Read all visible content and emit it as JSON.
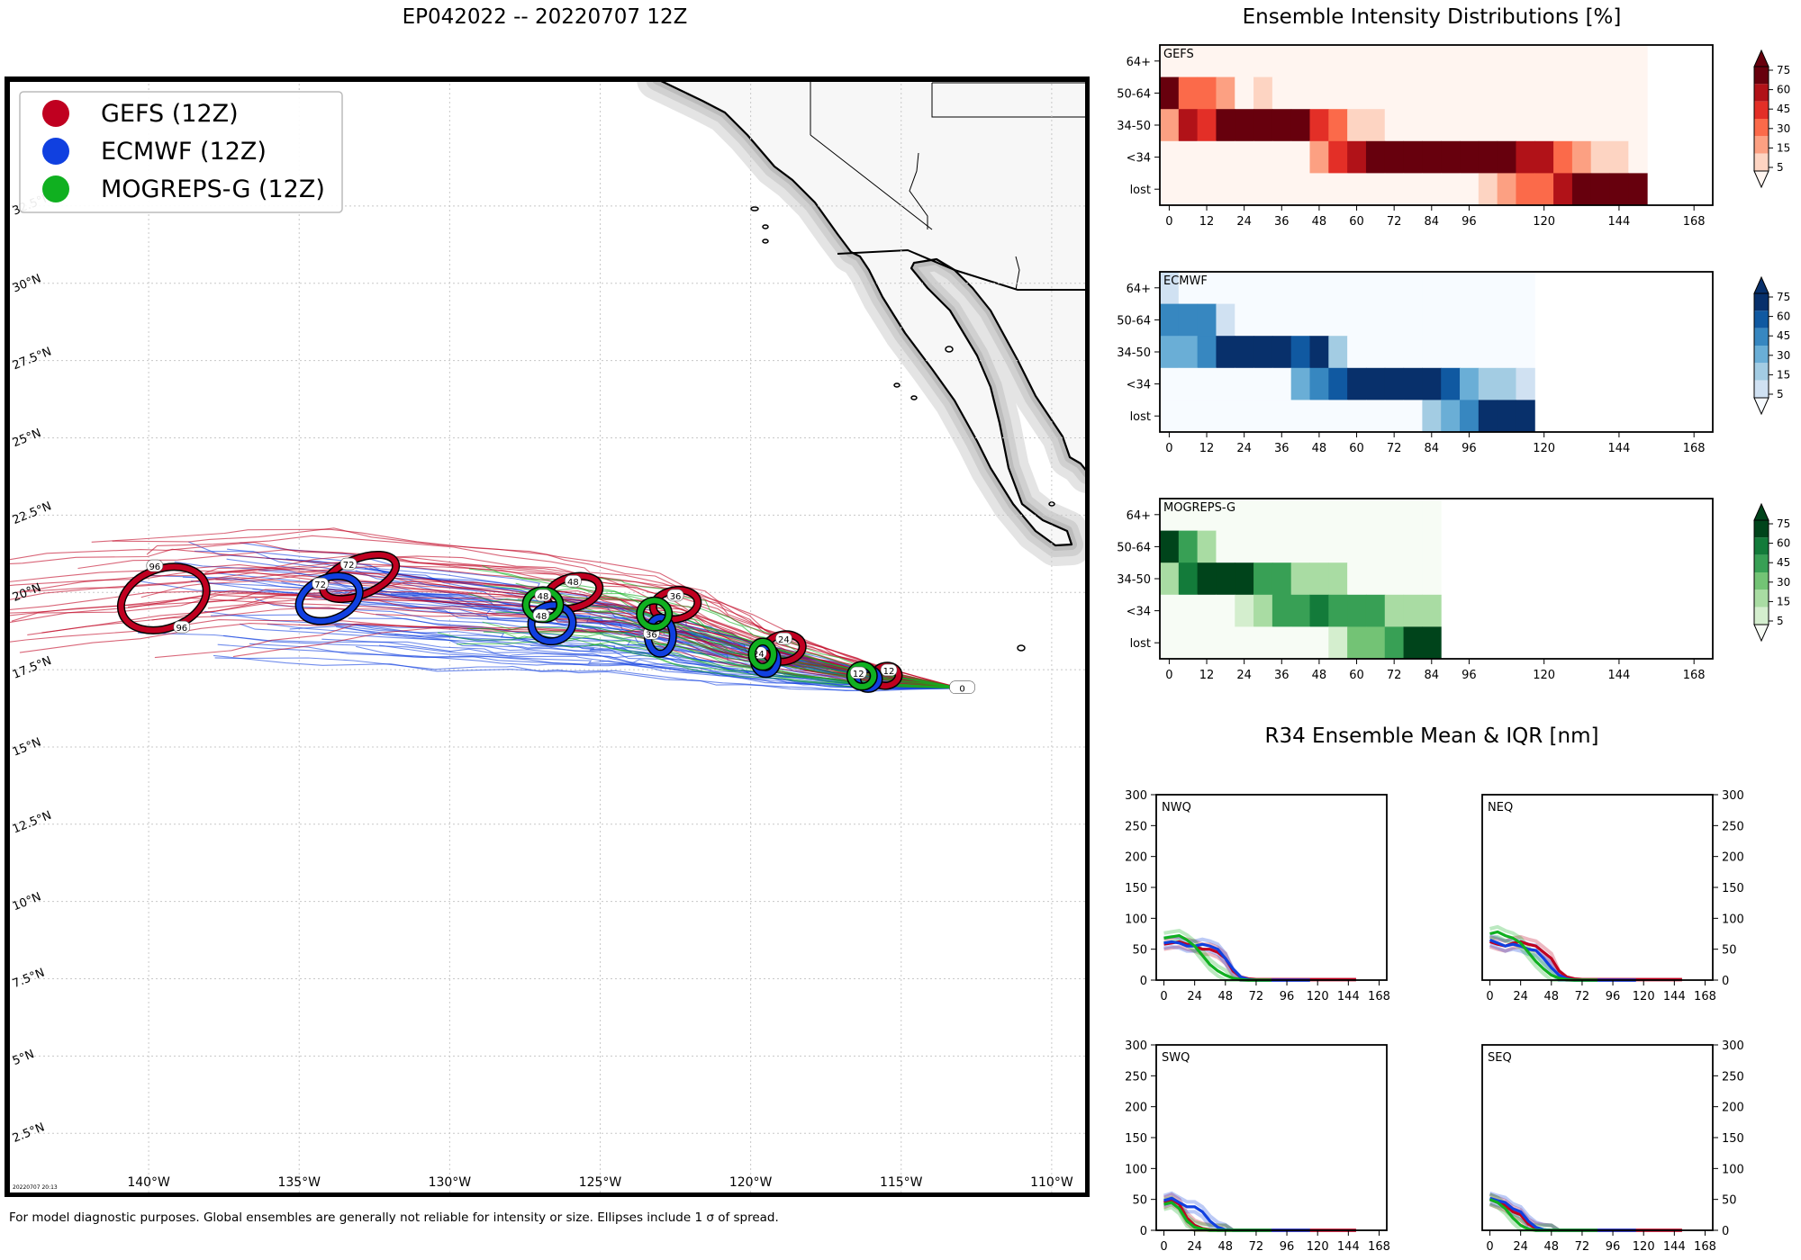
{
  "titles": {
    "main": "EP042022 -- 20220707 12Z",
    "intensity": "Ensemble Intensity Distributions [%]",
    "r34": "R34 Ensemble Mean & IQR [nm]"
  },
  "footnote": "For model diagnostic purposes. Global ensembles are generally not reliable for intensity or size. Ellipses include 1 σ of spread.",
  "stamp": "20220707 20:13",
  "colors": {
    "gefs": "#c00020",
    "ecmwf": "#1040e0",
    "mogreps": "#10b020",
    "land": "#f7f7f7",
    "coast": "#000000"
  },
  "chart_data": [
    {
      "type": "map",
      "title": "EP042022 -- 20220707 12Z",
      "legend_position": "top-left",
      "legend": [
        {
          "label": "GEFS (12Z)",
          "color": "#c00020"
        },
        {
          "label": "ECMWF (12Z)",
          "color": "#1040e0"
        },
        {
          "label": "MOGREPS-G (12Z)",
          "color": "#10b020"
        }
      ],
      "lon_ticks": [
        "140°W",
        "135°W",
        "130°W",
        "125°W",
        "120°W",
        "115°W",
        "110°W"
      ],
      "lat_ticks": [
        "2.5°N",
        "5°N",
        "7.5°N",
        "10°N",
        "12.5°N",
        "15°N",
        "17.5°N",
        "20°N",
        "22.5°N",
        "25°N",
        "27.5°N",
        "30°N",
        "32.5°N"
      ],
      "xlim": [
        -144.7,
        -108.8
      ],
      "ylim": [
        0.5,
        36.6
      ],
      "forecast_positions": {
        "GEFS": [
          [
            0,
            -113.0,
            16.9
          ],
          [
            12,
            -115.5,
            17.3
          ],
          [
            24,
            -118.9,
            18.2
          ],
          [
            36,
            -122.5,
            19.6
          ],
          [
            48,
            -125.9,
            20.0
          ],
          [
            72,
            -133.0,
            20.5
          ],
          [
            96,
            -139.5,
            19.8
          ]
        ],
        "ECMWF": [
          [
            0,
            -113.0,
            16.9
          ],
          [
            12,
            -116.1,
            17.2
          ],
          [
            24,
            -119.5,
            17.8
          ],
          [
            36,
            -123.0,
            18.6
          ],
          [
            48,
            -126.6,
            19.0
          ],
          [
            72,
            -134.0,
            19.8
          ]
        ],
        "MOGREPS-G": [
          [
            0,
            -113.0,
            16.9
          ],
          [
            12,
            -116.3,
            17.3
          ],
          [
            24,
            -119.6,
            18.0
          ],
          [
            36,
            -123.0,
            19.2
          ],
          [
            48,
            -126.9,
            19.6
          ]
        ]
      }
    },
    {
      "type": "heatmap",
      "title": "GEFS",
      "cmap": "Reds",
      "y_categories": [
        "64+",
        "50-64",
        "34-50",
        "<34",
        "lost"
      ],
      "x_ticks": [
        0,
        12,
        24,
        36,
        48,
        60,
        72,
        84,
        96,
        120,
        144,
        168
      ],
      "colorbar_ticks": [
        5,
        15,
        30,
        45,
        60,
        75
      ],
      "x_hours": [
        0,
        6,
        12,
        18,
        24,
        30,
        36,
        42,
        48,
        54,
        60,
        66,
        72,
        78,
        84,
        90,
        96,
        102,
        108,
        114,
        120,
        126,
        132,
        138,
        144,
        150
      ],
      "values": [
        [
          0,
          0,
          0,
          0,
          0,
          0,
          0,
          0,
          0,
          0,
          0,
          0,
          0,
          0,
          0,
          0,
          0,
          0,
          0,
          0,
          0,
          0,
          0,
          0,
          0,
          0
        ],
        [
          80,
          40,
          40,
          15,
          0,
          5,
          0,
          0,
          0,
          0,
          0,
          0,
          0,
          0,
          0,
          0,
          0,
          0,
          0,
          0,
          0,
          0,
          0,
          0,
          0,
          0
        ],
        [
          15,
          70,
          45,
          80,
          80,
          80,
          80,
          80,
          45,
          40,
          10,
          10,
          0,
          0,
          0,
          0,
          0,
          0,
          0,
          0,
          0,
          0,
          0,
          0,
          0,
          0
        ],
        [
          0,
          0,
          0,
          0,
          0,
          0,
          0,
          0,
          20,
          45,
          60,
          80,
          80,
          80,
          80,
          80,
          80,
          80,
          80,
          60,
          60,
          40,
          20,
          10,
          10,
          0
        ],
        [
          0,
          0,
          0,
          0,
          0,
          0,
          0,
          0,
          0,
          0,
          0,
          0,
          0,
          0,
          0,
          0,
          0,
          10,
          20,
          40,
          40,
          60,
          80,
          80,
          80,
          80
        ]
      ]
    },
    {
      "type": "heatmap",
      "title": "ECMWF",
      "cmap": "Blues",
      "y_categories": [
        "64+",
        "50-64",
        "34-50",
        "<34",
        "lost"
      ],
      "x_ticks": [
        0,
        12,
        24,
        36,
        48,
        60,
        72,
        84,
        96,
        120,
        144,
        168
      ],
      "colorbar_ticks": [
        5,
        15,
        30,
        45,
        60,
        75
      ],
      "x_hours": [
        0,
        6,
        12,
        18,
        24,
        30,
        36,
        42,
        48,
        54,
        60,
        66,
        72,
        78,
        84,
        90,
        96,
        102,
        108,
        114
      ],
      "values": [
        [
          10,
          0,
          0,
          0,
          0,
          0,
          0,
          0,
          0,
          0,
          0,
          0,
          0,
          0,
          0,
          0,
          0,
          0,
          0,
          0
        ],
        [
          50,
          50,
          50,
          10,
          0,
          0,
          0,
          0,
          0,
          0,
          0,
          0,
          0,
          0,
          0,
          0,
          0,
          0,
          0,
          0
        ],
        [
          35,
          35,
          50,
          80,
          80,
          80,
          80,
          60,
          80,
          25,
          0,
          0,
          0,
          0,
          0,
          0,
          0,
          0,
          0,
          0
        ],
        [
          0,
          0,
          0,
          0,
          0,
          0,
          0,
          30,
          45,
          70,
          80,
          80,
          80,
          80,
          80,
          60,
          40,
          25,
          25,
          10
        ],
        [
          0,
          0,
          0,
          0,
          0,
          0,
          0,
          0,
          0,
          0,
          0,
          0,
          0,
          0,
          25,
          40,
          50,
          80,
          80,
          80
        ]
      ]
    },
    {
      "type": "heatmap",
      "title": "MOGREPS-G",
      "cmap": "Greens",
      "y_categories": [
        "64+",
        "50-64",
        "34-50",
        "<34",
        "lost"
      ],
      "x_ticks": [
        0,
        12,
        24,
        36,
        48,
        60,
        72,
        84,
        96,
        120,
        144,
        168
      ],
      "colorbar_ticks": [
        5,
        15,
        30,
        45,
        60,
        75
      ],
      "x_hours": [
        0,
        6,
        12,
        18,
        24,
        30,
        36,
        42,
        48,
        54,
        60,
        66,
        72,
        78,
        84
      ],
      "values": [
        [
          0,
          0,
          0,
          0,
          0,
          0,
          0,
          0,
          0,
          0,
          0,
          0,
          0,
          0,
          0
        ],
        [
          80,
          50,
          25,
          0,
          0,
          0,
          0,
          0,
          0,
          0,
          0,
          0,
          0,
          0,
          0
        ],
        [
          25,
          60,
          80,
          80,
          80,
          50,
          50,
          20,
          15,
          15,
          0,
          0,
          0,
          0,
          0
        ],
        [
          0,
          0,
          0,
          0,
          5,
          15,
          45,
          45,
          70,
          50,
          50,
          45,
          25,
          15,
          15
        ],
        [
          0,
          0,
          0,
          0,
          0,
          0,
          0,
          0,
          0,
          5,
          40,
          40,
          50,
          80,
          80
        ]
      ]
    },
    {
      "type": "line",
      "title": "NWQ",
      "x_ticks": [
        0,
        24,
        48,
        72,
        96,
        120,
        144,
        168
      ],
      "y_ticks": [
        0,
        50,
        100,
        150,
        200,
        250,
        300
      ],
      "ylim": [
        0,
        300
      ],
      "y_axis": "left",
      "series": [
        {
          "name": "GEFS",
          "color": "#c00020",
          "x": [
            0,
            6,
            12,
            18,
            24,
            30,
            36,
            42,
            48,
            54,
            60,
            66,
            72,
            96,
            120,
            150
          ],
          "y": [
            58,
            60,
            62,
            58,
            55,
            50,
            50,
            45,
            35,
            15,
            5,
            2,
            1,
            1,
            1,
            1
          ]
        },
        {
          "name": "ECMWF",
          "color": "#1040e0",
          "x": [
            0,
            6,
            12,
            18,
            24,
            30,
            36,
            42,
            48,
            54,
            60,
            66,
            72,
            96,
            114
          ],
          "y": [
            60,
            62,
            60,
            55,
            55,
            58,
            55,
            50,
            35,
            18,
            5,
            1,
            0,
            0,
            0
          ]
        },
        {
          "name": "MOGREPS-G",
          "color": "#10b020",
          "x": [
            0,
            6,
            12,
            18,
            24,
            30,
            36,
            42,
            48,
            54,
            60,
            66,
            72,
            84
          ],
          "y": [
            68,
            70,
            72,
            65,
            55,
            40,
            25,
            15,
            8,
            3,
            1,
            0,
            0,
            0
          ]
        }
      ]
    },
    {
      "type": "line",
      "title": "NEQ",
      "x_ticks": [
        0,
        24,
        48,
        72,
        96,
        120,
        144,
        168
      ],
      "y_ticks": [
        0,
        50,
        100,
        150,
        200,
        250,
        300
      ],
      "ylim": [
        0,
        300
      ],
      "y_axis": "right",
      "series": [
        {
          "name": "GEFS",
          "color": "#c00020",
          "x": [
            0,
            6,
            12,
            18,
            24,
            30,
            36,
            42,
            48,
            54,
            60,
            66,
            72,
            96,
            120,
            150
          ],
          "y": [
            62,
            58,
            55,
            60,
            62,
            58,
            55,
            45,
            35,
            15,
            5,
            2,
            1,
            1,
            1,
            1
          ]
        },
        {
          "name": "ECMWF",
          "color": "#1040e0",
          "x": [
            0,
            6,
            12,
            18,
            24,
            30,
            36,
            42,
            48,
            54,
            60,
            66,
            72,
            96,
            114
          ],
          "y": [
            65,
            60,
            55,
            58,
            55,
            50,
            48,
            35,
            20,
            8,
            2,
            0,
            0,
            0,
            0
          ]
        },
        {
          "name": "MOGREPS-G",
          "color": "#10b020",
          "x": [
            0,
            6,
            12,
            18,
            24,
            30,
            36,
            42,
            48,
            54,
            60,
            66,
            72,
            84
          ],
          "y": [
            75,
            78,
            72,
            68,
            60,
            45,
            30,
            18,
            8,
            3,
            1,
            0,
            0,
            0
          ]
        }
      ]
    },
    {
      "type": "line",
      "title": "SWQ",
      "x_ticks": [
        0,
        24,
        48,
        72,
        96,
        120,
        144,
        168
      ],
      "y_ticks": [
        0,
        50,
        100,
        150,
        200,
        250,
        300
      ],
      "ylim": [
        0,
        300
      ],
      "y_axis": "left",
      "series": [
        {
          "name": "GEFS",
          "color": "#c00020",
          "x": [
            0,
            6,
            12,
            18,
            24,
            30,
            36,
            42,
            48,
            54,
            60,
            66,
            72,
            96,
            120,
            150
          ],
          "y": [
            45,
            50,
            42,
            20,
            8,
            3,
            1,
            0,
            0,
            0,
            0,
            0,
            0,
            0,
            0,
            0
          ]
        },
        {
          "name": "ECMWF",
          "color": "#1040e0",
          "x": [
            0,
            6,
            12,
            18,
            24,
            30,
            36,
            42,
            48,
            54,
            60,
            66,
            72,
            96,
            114
          ],
          "y": [
            48,
            52,
            45,
            38,
            38,
            30,
            15,
            5,
            1,
            0,
            0,
            0,
            0,
            0,
            0
          ]
        },
        {
          "name": "MOGREPS-G",
          "color": "#10b020",
          "x": [
            0,
            6,
            12,
            18,
            24,
            30,
            36,
            42,
            48,
            54,
            60,
            66,
            72,
            84
          ],
          "y": [
            42,
            45,
            35,
            15,
            5,
            2,
            0,
            0,
            0,
            0,
            0,
            0,
            0,
            0
          ]
        }
      ]
    },
    {
      "type": "line",
      "title": "SEQ",
      "x_ticks": [
        0,
        24,
        48,
        72,
        96,
        120,
        144,
        168
      ],
      "y_ticks": [
        0,
        50,
        100,
        150,
        200,
        250,
        300
      ],
      "ylim": [
        0,
        300
      ],
      "y_axis": "right",
      "series": [
        {
          "name": "GEFS",
          "color": "#c00020",
          "x": [
            0,
            6,
            12,
            18,
            24,
            30,
            36,
            42,
            48,
            54,
            60,
            66,
            72,
            96,
            120,
            150
          ],
          "y": [
            50,
            45,
            40,
            30,
            25,
            10,
            3,
            1,
            0,
            0,
            0,
            0,
            0,
            0,
            0,
            0
          ]
        },
        {
          "name": "ECMWF",
          "color": "#1040e0",
          "x": [
            0,
            6,
            12,
            18,
            24,
            30,
            36,
            42,
            48,
            54,
            60,
            66,
            72,
            96,
            114
          ],
          "y": [
            52,
            48,
            45,
            35,
            30,
            15,
            5,
            1,
            0,
            0,
            0,
            0,
            0,
            0,
            0
          ]
        },
        {
          "name": "MOGREPS-G",
          "color": "#10b020",
          "x": [
            0,
            6,
            12,
            18,
            24,
            30,
            36,
            42,
            48,
            54,
            60,
            66,
            72,
            84
          ],
          "y": [
            50,
            45,
            35,
            20,
            8,
            2,
            0,
            0,
            0,
            0,
            0,
            0,
            0,
            0
          ]
        }
      ]
    }
  ]
}
